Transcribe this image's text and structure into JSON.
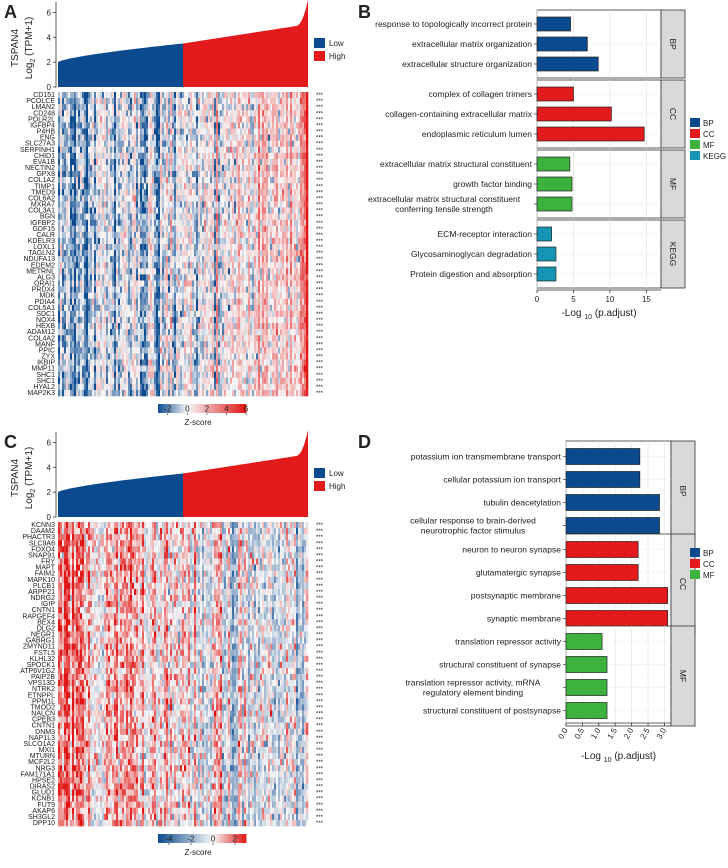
{
  "panels": {
    "A": {
      "letter": "A",
      "gene": "TSPAN4",
      "ylabel": "Log2 (TPM+1)",
      "ylabel_base": "Log",
      "ylabel_sub": "2",
      "ylabel_rest": " (TPM+1)",
      "yticks": [
        0,
        2,
        4,
        6
      ],
      "legend": [
        {
          "name": "Low",
          "color": "#0B4A8F"
        },
        {
          "name": "High",
          "color": "#E31A1C"
        }
      ],
      "colorbar": {
        "label": "Z-score",
        "ticks": [
          "-2",
          "0",
          "2",
          "4",
          "6"
        ]
      },
      "signif": "***",
      "genes": [
        "CD151",
        "PCOLCE",
        "LMAN2",
        "CD248",
        "POLR2L",
        "IGFBP4",
        "P4HB",
        "ENG",
        "SLC27A3",
        "SERPINH1",
        "CHID1",
        "EVA1B",
        "NECTIN2",
        "GPX8",
        "COL1A2",
        "TIMP1",
        "TMED9",
        "COL6A2",
        "MXRA7",
        "COL3A1",
        "BGN",
        "IGFBP2",
        "GDF15",
        "CALR",
        "KDELR3",
        "LOXL1",
        "TAGLN2",
        "NDUFA13",
        "EDEM2",
        "METRNL",
        "ALG3",
        "ORAI1",
        "PRDX4",
        "MDK",
        "PDIA4",
        "COL5A1",
        "SDC1",
        "NOX4",
        "HEXB",
        "ADAM12",
        "COL4A2",
        "MANF",
        "PPIC",
        "ZYX",
        "IKBIP",
        "MMP11",
        "SHC1",
        "SHC1",
        "HYAL2",
        "MAP2K3"
      ]
    },
    "B": {
      "letter": "B",
      "xlabel": "-Log 10 (p.adjust)",
      "xlabel_base": "-Log ",
      "xlabel_sub": "10",
      "xlabel_rest": " (p.adjust)",
      "xticks": [
        0,
        5,
        10,
        15
      ],
      "legend": [
        {
          "name": "BP",
          "color": "#0B4A8F"
        },
        {
          "name": "CC",
          "color": "#E31A1C"
        },
        {
          "name": "MF",
          "color": "#3DB33D"
        },
        {
          "name": "KEGG",
          "color": "#1696B4"
        }
      ]
    },
    "C": {
      "letter": "C",
      "gene": "TSPAN4",
      "ylabel": "Log2 (TPM+1)",
      "ylabel_base": "Log",
      "ylabel_sub": "2",
      "ylabel_rest": " (TPM+1)",
      "yticks": [
        0,
        2,
        4,
        6
      ],
      "legend": [
        {
          "name": "Low",
          "color": "#0B4A8F"
        },
        {
          "name": "High",
          "color": "#E31A1C"
        }
      ],
      "colorbar": {
        "label": "Z-score",
        "ticks": [
          "-4",
          "-2",
          "0",
          "2"
        ]
      },
      "signif": "***",
      "genes": [
        "KCNN3",
        "DAAM2",
        "PHACTR3",
        "SLC9A6",
        "FOXO4",
        "SNAP91",
        "FRY",
        "MAPT",
        "FAIM2",
        "MAPK10",
        "PLCB1",
        "ARPP21",
        "NDRG2",
        "IGIP",
        "CNTN1",
        "RAPGEF4",
        "BEX4",
        "DLG2",
        "NEGR1",
        "GABRG1",
        "ZMYND11",
        "FSTL5",
        "KLHL32",
        "SPOCK1",
        "ATP6V1G2",
        "PAIP2B",
        "VPS13D",
        "NTRK2",
        "ETNPPL",
        "PPM1L",
        "TMOD2",
        "NALCN",
        "CPEB3",
        "CNTN1",
        "DNM3",
        "NAP1L3",
        "SLCO1A2",
        "MXI1",
        "MTURN",
        "MCF2L2",
        "NRG3",
        "FAM171A1",
        "HPSE2",
        "DIRAS2",
        "GLUD1",
        "KCNB1",
        "FUT9",
        "AKAP6",
        "SH3GL2",
        "DPP10"
      ]
    },
    "D": {
      "letter": "D",
      "xlabel": "-Log 10 (p.adjust)",
      "xlabel_base": "-Log ",
      "xlabel_sub": "10",
      "xlabel_rest": " (p.adjust)",
      "xticks": [
        "0.0",
        "0.5",
        "1.0",
        "1.5",
        "2.0",
        "2.5",
        "3.0"
      ],
      "legend": [
        {
          "name": "BP",
          "color": "#0B4A8F"
        },
        {
          "name": "CC",
          "color": "#E31A1C"
        },
        {
          "name": "MF",
          "color": "#3DB33D"
        }
      ]
    }
  },
  "chart_data": [
    {
      "panel": "A",
      "type": "area",
      "series": [
        {
          "name": "Low",
          "color": "#0B4A8F"
        },
        {
          "name": "High",
          "color": "#E31A1C"
        }
      ],
      "ylabel": "Log2 (TPM+1)",
      "ylim": [
        0,
        7
      ],
      "shape": "sorted expression rising from ~2.0 to ~3.5 at the Low/High split, then to ~5 and a tail near 7"
    },
    {
      "panel": "A",
      "type": "heatmap",
      "value_label": "Z-score",
      "range": [
        -3,
        6
      ],
      "rows": 50,
      "note": "low-expression samples mostly blue, high-expression samples mostly red; all rows ***"
    },
    {
      "panel": "B",
      "type": "bar",
      "xlabel": "-Log10 (p.adjust)",
      "xlim": [
        0,
        17
      ],
      "groups": [
        {
          "name": "BP",
          "color": "#0B4A8F",
          "terms": [
            "response to topologically incorrect protein",
            "extracellular matrix organization",
            "extracellular structure organization"
          ],
          "values": [
            4.6,
            6.9,
            8.4
          ]
        },
        {
          "name": "CC",
          "color": "#E31A1C",
          "terms": [
            "complex of collagen trimers",
            "collagen-containing extracellular matrix",
            "endoplasmic reticulum lumen"
          ],
          "values": [
            5.0,
            10.2,
            14.7
          ]
        },
        {
          "name": "MF",
          "color": "#3DB33D",
          "terms": [
            "extracellular matrix structural constituent",
            "growth factor binding",
            "extracellular matrix structural constituent conferring tensile strength"
          ],
          "values": [
            4.5,
            4.8,
            4.8
          ]
        },
        {
          "name": "KEGG",
          "color": "#1696B4",
          "terms": [
            "ECM-receptor interaction",
            "Glycosaminoglycan degradation",
            "Protein digestion and absorption"
          ],
          "values": [
            2.0,
            2.6,
            2.6
          ]
        }
      ]
    },
    {
      "panel": "C",
      "type": "area",
      "series": [
        {
          "name": "Low",
          "color": "#0B4A8F"
        },
        {
          "name": "High",
          "color": "#E31A1C"
        }
      ],
      "ylabel": "Log2 (TPM+1)",
      "ylim": [
        0,
        7
      ],
      "shape": "sorted expression rising from ~2.0 to ~3.5 at the Low/High split, then to ~5 and a tail near 7"
    },
    {
      "panel": "C",
      "type": "heatmap",
      "value_label": "Z-score",
      "range": [
        -5,
        3
      ],
      "rows": 50,
      "note": "low-expression samples mostly red, high-expression samples lighter; all rows ***"
    },
    {
      "panel": "D",
      "type": "bar",
      "xlabel": "-Log10 (p.adjust)",
      "xlim": [
        0,
        3.2
      ],
      "groups": [
        {
          "name": "BP",
          "color": "#0B4A8F",
          "terms": [
            "potassium ion transmembrane transport",
            "cellular potassium ion transport",
            "tubulin deacetylation",
            "cellular response to brain-derived neurotrophic factor stimulus"
          ],
          "values": [
            2.25,
            2.25,
            2.85,
            2.85
          ]
        },
        {
          "name": "CC",
          "color": "#E31A1C",
          "terms": [
            "neuron to neuron synapse",
            "glutamatergic synapse",
            "postsynaptic membrane",
            "synaptic membrane"
          ],
          "values": [
            2.2,
            2.2,
            3.1,
            3.1
          ]
        },
        {
          "name": "MF",
          "color": "#3DB33D",
          "terms": [
            "translation repressor activity",
            "structural constituent of synapse",
            "translation repressor activity, mRNA regulatory element binding",
            "structural constituent of postsynapse"
          ],
          "values": [
            1.1,
            1.25,
            1.25,
            1.25
          ]
        }
      ]
    }
  ]
}
